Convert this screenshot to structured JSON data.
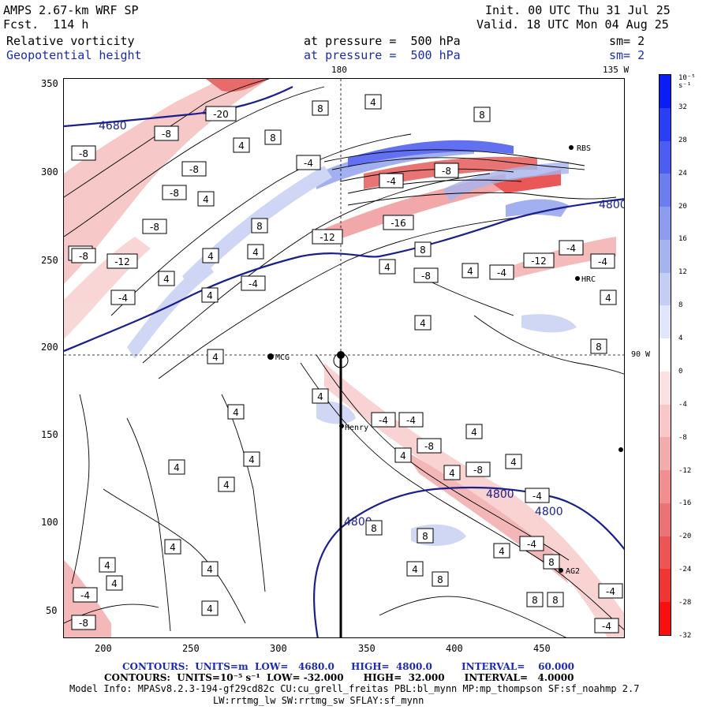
{
  "header": {
    "model": "AMPS 2.67-km WRF SP",
    "fcst": "Fcst.  114 h",
    "init": "Init. 00 UTC Thu 31 Jul 25",
    "valid": "Valid. 18 UTC Mon 04 Aug 25",
    "field1": "Relative vorticity",
    "field2": "Geopotential height",
    "pressure1": "at pressure =  500 hPa",
    "pressure2": "at pressure =  500 hPa",
    "sm1": "sm= 2",
    "sm2": "sm= 2",
    "lon_top": "180",
    "lon_top_right": "135 W",
    "lon_right": "90 W"
  },
  "colorbar": {
    "unit": "10⁻⁵ s⁻¹",
    "labels": [
      "32",
      "28",
      "24",
      "20",
      "16",
      "12",
      "8",
      "4",
      "0",
      "-4",
      "-8",
      "-12",
      "-16",
      "-20",
      "-24",
      "-28",
      "-32"
    ],
    "colors": [
      "#0a1df5",
      "#2a3ef5",
      "#4a5ef0",
      "#6b7eed",
      "#8c9ded",
      "#a6b4ee",
      "#c4cdf3",
      "#e2e6fa",
      "#ffffff",
      "#fbe2e2",
      "#f8c8c8",
      "#f3acac",
      "#ef8f8f",
      "#ec7373",
      "#ec5555",
      "#f03535",
      "#f81010"
    ]
  },
  "axes": {
    "x_ticks": [
      "200",
      "250",
      "300",
      "350",
      "400",
      "450"
    ],
    "y_ticks": [
      "350",
      "300",
      "250",
      "200",
      "150",
      "100",
      "50"
    ]
  },
  "stations": [
    "MCG",
    "Henry",
    "RBS",
    "HRC",
    "AG2"
  ],
  "height_labels": [
    "4680",
    "4680",
    "4800",
    "4800",
    "4800",
    "4800"
  ],
  "vort_labels": [
    "4",
    "8",
    "-4",
    "-8",
    "-12",
    "-16",
    "-20"
  ],
  "footer": {
    "line1_a": "CONTOURS:  UNITS=m  LOW=   4680.0",
    "line1_b": "HIGH=  4800.0",
    "line1_c": "INTERVAL=    60.000",
    "line2": "CONTOURS:  UNITS=10⁻⁵ s⁻¹  LOW= -32.000      HIGH=  32.000      INTERVAL=   4.0000",
    "line3": "Model Info: MPASv8.2.3-194-gf29cd82c CU:cu_grell_freitas PBL:bl_mynn MP:mp_thompson SF:sf_noahmp 2.7",
    "line4": "LW:rrtmg_lw SW:rrtmg_sw SFLAY:sf_mynn"
  }
}
